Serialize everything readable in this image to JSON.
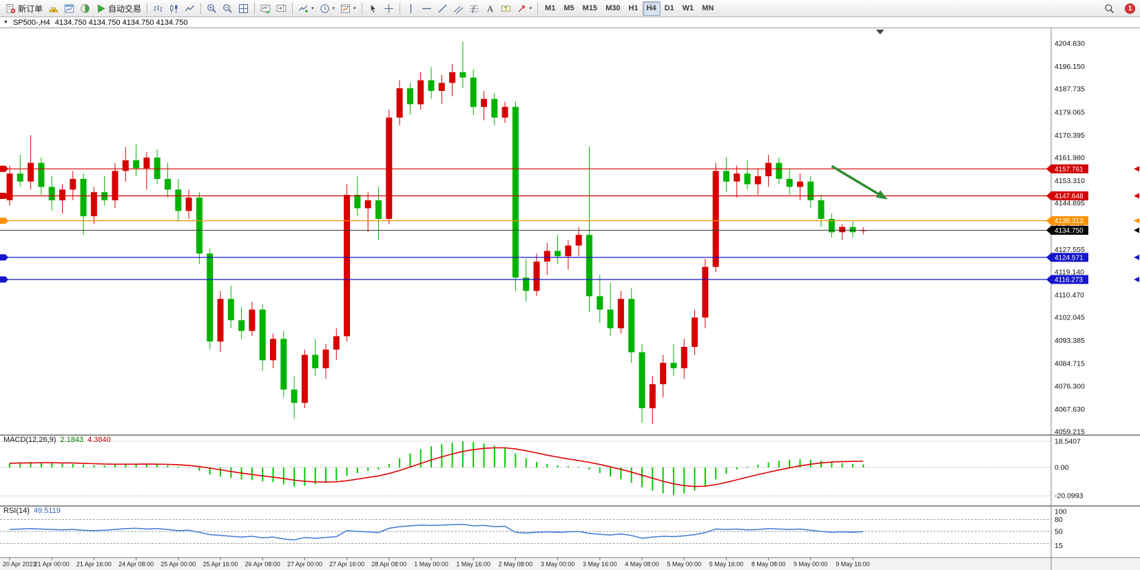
{
  "chart": {
    "symbol_period": "SP500-,H4",
    "ohlc_text": "4134.750 4134.750 4134.750 4134.750"
  },
  "toolbar": {
    "groups": [
      {
        "items": [
          {
            "name": "new-order-button",
            "label": "新订单",
            "icon": "new-order-icon"
          },
          {
            "name": "market-watch-button",
            "icon": "market-watch-icon"
          },
          {
            "name": "data-window-button",
            "icon": "data-window-icon"
          },
          {
            "name": "navigator-button",
            "icon": "navigator-icon"
          },
          {
            "name": "auto-trading-button",
            "label": "自动交易",
            "icon": "autotrade-play-icon"
          }
        ]
      },
      {
        "items": [
          {
            "name": "bar-chart-button",
            "icon": "bar-chart-icon"
          },
          {
            "name": "candlestick-chart-button",
            "icon": "candlestick-icon"
          },
          {
            "name": "line-chart-button",
            "icon": "line-chart-icon"
          }
        ]
      },
      {
        "items": [
          {
            "name": "zoom-in-button",
            "icon": "zoom-in-icon"
          },
          {
            "name": "zoom-out-button",
            "icon": "zoom-out-icon"
          },
          {
            "name": "tile-windows-button",
            "icon": "tile-windows-icon"
          }
        ]
      },
      {
        "items": [
          {
            "name": "auto-scroll-button",
            "icon": "auto-scroll-icon"
          },
          {
            "name": "chart-shift-button",
            "icon": "chart-shift-icon"
          }
        ]
      },
      {
        "items": [
          {
            "name": "indicators-button",
            "icon": "indicators-icon",
            "caret": true
          },
          {
            "name": "periods-button",
            "icon": "clock-icon",
            "caret": true
          },
          {
            "name": "templates-button",
            "icon": "template-icon",
            "caret": true
          }
        ]
      },
      {
        "items": [
          {
            "name": "cursor-tool",
            "icon": "cursor-icon"
          },
          {
            "name": "crosshair-tool",
            "icon": "crosshair-icon"
          }
        ]
      },
      {
        "items": [
          {
            "name": "vertical-line-tool",
            "icon": "vline-icon"
          },
          {
            "name": "horizontal-line-tool",
            "icon": "hline-icon"
          },
          {
            "name": "trendline-tool",
            "icon": "trendline-icon"
          },
          {
            "name": "channel-tool",
            "icon": "channel-icon"
          },
          {
            "name": "fibonacci-tool",
            "icon": "fibonacci-icon"
          },
          {
            "name": "text-tool",
            "icon": "text-icon"
          },
          {
            "name": "label-tool",
            "icon": "label-icon"
          },
          {
            "name": "arrows-tool",
            "icon": "arrows-icon",
            "caret": true
          }
        ]
      },
      {
        "items": [
          {
            "name": "tf-m1",
            "label": "M1",
            "tf": true
          },
          {
            "name": "tf-m5",
            "label": "M5",
            "tf": true
          },
          {
            "name": "tf-m15",
            "label": "M15",
            "tf": true
          },
          {
            "name": "tf-m30",
            "label": "M30",
            "tf": true
          },
          {
            "name": "tf-h1",
            "label": "H1",
            "tf": true
          },
          {
            "name": "tf-h4",
            "label": "H4",
            "tf": true,
            "active": true
          },
          {
            "name": "tf-d1",
            "label": "D1",
            "tf": true
          },
          {
            "name": "tf-w1",
            "label": "W1",
            "tf": true
          },
          {
            "name": "tf-mn",
            "label": "MN",
            "tf": true
          }
        ]
      }
    ],
    "right_items": [
      {
        "name": "search-button",
        "icon": "search-icon"
      },
      {
        "name": "notifications-badge",
        "badge": "1"
      }
    ]
  },
  "chart_data": {
    "type": "candlestick",
    "symbol": "SP500-",
    "timeframe": "H4",
    "color_convention": "red = bullish, green = bearish",
    "price_axis_labels": [
      "4204.830",
      "4196.150",
      "4187.735",
      "4179.065",
      "4170.395",
      "4161.980",
      "4153.310",
      "4144.895",
      "4136.225",
      "4127.555",
      "4119.140",
      "4110.470",
      "4102.045",
      "4093.385",
      "4084.715",
      "4076.300",
      "4067.630",
      "4059.215"
    ],
    "time_labels": [
      "20 Apr 2023",
      "21 Apr 00:00",
      "21 Apr 16:00",
      "24 Apr 08:00",
      "25 Apr 00:00",
      "25 Apr 16:00",
      "26 Apr 08:00",
      "27 Apr 00:00",
      "27 Apr 16:00",
      "28 Apr 08:00",
      "1 May 00:00",
      "1 May 16:00",
      "2 May 08:00",
      "3 May 00:00",
      "3 May 16:00",
      "4 May 08:00",
      "5 May 00:00",
      "5 May 16:00",
      "8 May 08:00",
      "9 May 00:00",
      "9 May 16:00"
    ],
    "candles_ohlc": [
      [
        4146,
        4159,
        4144,
        4156
      ],
      [
        4156,
        4163,
        4151,
        4153
      ],
      [
        4153,
        4170.4,
        4150,
        4160
      ],
      [
        4160,
        4162,
        4148,
        4151
      ],
      [
        4151,
        4155,
        4142,
        4146
      ],
      [
        4146,
        4152,
        4141,
        4150
      ],
      [
        4150,
        4157,
        4146,
        4154
      ],
      [
        4154,
        4156,
        4133,
        4140
      ],
      [
        4140,
        4151,
        4137,
        4149
      ],
      [
        4149,
        4155,
        4144,
        4146
      ],
      [
        4146,
        4160,
        4143,
        4157
      ],
      [
        4157,
        4166,
        4153,
        4161
      ],
      [
        4161,
        4167,
        4155,
        4158
      ],
      [
        4158,
        4164,
        4150,
        4162
      ],
      [
        4162,
        4165,
        4152,
        4154
      ],
      [
        4154,
        4160,
        4147,
        4150
      ],
      [
        4150,
        4154,
        4138,
        4142
      ],
      [
        4142,
        4150,
        4139,
        4147
      ],
      [
        4147,
        4149,
        4122,
        4126
      ],
      [
        4126,
        4128,
        4090,
        4093
      ],
      [
        4093,
        4112,
        4089,
        4109
      ],
      [
        4109,
        4114,
        4098,
        4101
      ],
      [
        4101,
        4106,
        4094,
        4097
      ],
      [
        4097,
        4108,
        4095,
        4105
      ],
      [
        4105,
        4107,
        4082,
        4086
      ],
      [
        4086,
        4096,
        4083,
        4094
      ],
      [
        4094,
        4097,
        4072,
        4075
      ],
      [
        4075,
        4080,
        4064,
        4070
      ],
      [
        4070,
        4090,
        4068,
        4088
      ],
      [
        4088,
        4094,
        4080,
        4083
      ],
      [
        4083,
        4092,
        4079,
        4090
      ],
      [
        4090,
        4098,
        4086,
        4095
      ],
      [
        4095,
        4152,
        4093,
        4148
      ],
      [
        4148,
        4155,
        4140,
        4143
      ],
      [
        4143,
        4149,
        4134,
        4146
      ],
      [
        4146,
        4151,
        4131,
        4139
      ],
      [
        4139,
        4180,
        4137,
        4177
      ],
      [
        4177,
        4191,
        4174,
        4188
      ],
      [
        4188,
        4190,
        4178,
        4182
      ],
      [
        4182,
        4194,
        4180,
        4191
      ],
      [
        4191,
        4196,
        4184,
        4187
      ],
      [
        4187,
        4193,
        4182,
        4190
      ],
      [
        4190,
        4197,
        4185,
        4194
      ],
      [
        4194,
        4205.5,
        4188,
        4192
      ],
      [
        4192,
        4195,
        4178,
        4181
      ],
      [
        4181,
        4187,
        4176,
        4184
      ],
      [
        4184,
        4186,
        4174,
        4177
      ],
      [
        4177,
        4183,
        4175,
        4181
      ],
      [
        4181,
        4183,
        4112,
        4117
      ],
      [
        4117,
        4124,
        4108,
        4112
      ],
      [
        4112,
        4126,
        4110,
        4123
      ],
      [
        4123,
        4130,
        4118,
        4127
      ],
      [
        4127,
        4133,
        4122,
        4125
      ],
      [
        4125,
        4131,
        4120,
        4129
      ],
      [
        4129,
        4136,
        4125,
        4133
      ],
      [
        4133,
        4166,
        4104,
        4110
      ],
      [
        4110,
        4118,
        4100,
        4105
      ],
      [
        4105,
        4115,
        4095,
        4098
      ],
      [
        4098,
        4112,
        4096,
        4109
      ],
      [
        4109,
        4113,
        4085,
        4089
      ],
      [
        4089,
        4092,
        4062.5,
        4068
      ],
      [
        4068,
        4080,
        4062,
        4077
      ],
      [
        4077,
        4088,
        4072,
        4085
      ],
      [
        4085,
        4092,
        4080,
        4083
      ],
      [
        4083,
        4094,
        4079,
        4091
      ],
      [
        4091,
        4105,
        4088,
        4102
      ],
      [
        4102,
        4124,
        4098,
        4121
      ],
      [
        4121,
        4160,
        4119,
        4157
      ],
      [
        4157,
        4162,
        4149,
        4153
      ],
      [
        4153,
        4159,
        4147,
        4156
      ],
      [
        4156,
        4161,
        4150,
        4152
      ],
      [
        4152,
        4158,
        4148,
        4155
      ],
      [
        4155,
        4163,
        4151,
        4160
      ],
      [
        4160,
        4162,
        4152,
        4154
      ],
      [
        4154,
        4158,
        4148,
        4151
      ],
      [
        4151,
        4156,
        4146,
        4153
      ],
      [
        4153,
        4155,
        4143,
        4146
      ],
      [
        4146,
        4148,
        4136,
        4139
      ],
      [
        4139,
        4141,
        4132,
        4134
      ],
      [
        4134,
        4137,
        4131,
        4136
      ],
      [
        4136,
        4138,
        4132,
        4134
      ],
      [
        4134.75,
        4135.9,
        4133.2,
        4134.75
      ]
    ],
    "horizontal_lines": [
      {
        "price": 4157.761,
        "color": "#d40000"
      },
      {
        "price": 4147.648,
        "color": "#d40000"
      },
      {
        "price": 4138.313,
        "color": "#ff9000"
      },
      {
        "price": 4124.571,
        "color": "#1414cc"
      },
      {
        "price": 4116.273,
        "color": "#1414cc"
      }
    ],
    "bid": {
      "price": 4134.75,
      "line_color": "#3a3a3a",
      "tag_color": "#000000"
    },
    "arrow_annotation": {
      "from_bar": 78,
      "from_price": 4158.8,
      "to_bar": 83.3,
      "to_price": 4146.3,
      "color": "#2e8b2e"
    },
    "shift_marker_bar": 82.6,
    "macd": {
      "title": "MACD(12,26,9)",
      "main_value": "2.1843",
      "signal_value": "4.3840",
      "axis_labels": [
        "18.5407",
        "0.00",
        "-20.0993"
      ],
      "histogram": [
        3.0,
        3.4,
        3.8,
        3.6,
        3.2,
        2.8,
        2.4,
        2.0,
        1.6,
        1.4,
        1.8,
        2.2,
        2.6,
        2.6,
        2.2,
        1.6,
        0.6,
        -0.4,
        -2.5,
        -5.0,
        -6.5,
        -7.5,
        -8.5,
        -9.0,
        -10.0,
        -10.5,
        -12.0,
        -13.5,
        -13.0,
        -12.0,
        -11.0,
        -9.5,
        -6.0,
        -4.0,
        -2.5,
        -1.5,
        2.5,
        6.5,
        10.0,
        13.0,
        15.0,
        16.5,
        17.5,
        18.4,
        18.0,
        17.0,
        15.5,
        14.0,
        10.0,
        6.5,
        4.0,
        2.5,
        1.5,
        1.0,
        0.5,
        -1.5,
        -4.0,
        -6.5,
        -8.5,
        -11.0,
        -14.0,
        -16.5,
        -18.5,
        -19.5,
        -18.5,
        -16.5,
        -13.0,
        -8.5,
        -4.5,
        -1.5,
        0.5,
        2.0,
        3.5,
        4.8,
        5.5,
        5.8,
        5.5,
        4.8,
        3.8,
        3.0,
        2.5,
        2.1843
      ],
      "signal": [
        3.0,
        3.1,
        3.2,
        3.3,
        3.3,
        3.2,
        3.1,
        2.9,
        2.7,
        2.4,
        2.3,
        2.3,
        2.3,
        2.4,
        2.3,
        2.2,
        1.9,
        1.4,
        0.6,
        -0.5,
        -1.7,
        -2.9,
        -4.0,
        -5.0,
        -6.0,
        -6.9,
        -7.9,
        -9.0,
        -9.8,
        -10.3,
        -10.4,
        -10.2,
        -9.4,
        -8.3,
        -7.1,
        -6.0,
        -4.3,
        -2.2,
        0.3,
        2.8,
        5.3,
        7.5,
        9.5,
        11.3,
        12.6,
        13.5,
        13.9,
        13.9,
        13.1,
        11.8,
        10.3,
        8.7,
        7.3,
        6.0,
        4.9,
        3.6,
        2.1,
        0.4,
        -1.4,
        -3.3,
        -5.5,
        -7.6,
        -9.8,
        -11.6,
        -12.9,
        -13.5,
        -13.3,
        -12.2,
        -10.6,
        -8.8,
        -6.9,
        -5.1,
        -3.4,
        -1.8,
        -0.3,
        1.1,
        2.3,
        3.2,
        3.8,
        4.1,
        4.3,
        4.384
      ]
    },
    "rsi": {
      "title": "RSI(14)",
      "value": "49.5119",
      "axis_labels": [
        "100",
        "80",
        "50",
        "15"
      ],
      "levels": [
        80,
        50,
        20
      ],
      "values": [
        55,
        56,
        57,
        56,
        55,
        54,
        55,
        53,
        52,
        53,
        55,
        57,
        58,
        56,
        57,
        55,
        52,
        53,
        48,
        42,
        40,
        38,
        36,
        38,
        34,
        36,
        31,
        29,
        35,
        33,
        35,
        37,
        52,
        50,
        49,
        47,
        58,
        62,
        64,
        66,
        65,
        66,
        67,
        68,
        64,
        65,
        62,
        63,
        48,
        46,
        48,
        49,
        48,
        49,
        50,
        45,
        43,
        41,
        44,
        40,
        33,
        36,
        38,
        37,
        39,
        42,
        47,
        56,
        55,
        56,
        54,
        55,
        57,
        56,
        55,
        56,
        53,
        50,
        48,
        49,
        48,
        49.5119
      ]
    },
    "colors": {
      "up": "#d60000",
      "down": "#00b300",
      "macd_hist": "#00cc00",
      "macd_signal": "#e00000",
      "rsi": "#3c78d8",
      "bid": "#3a3a3a",
      "arrow": "#2e8b2e"
    }
  }
}
